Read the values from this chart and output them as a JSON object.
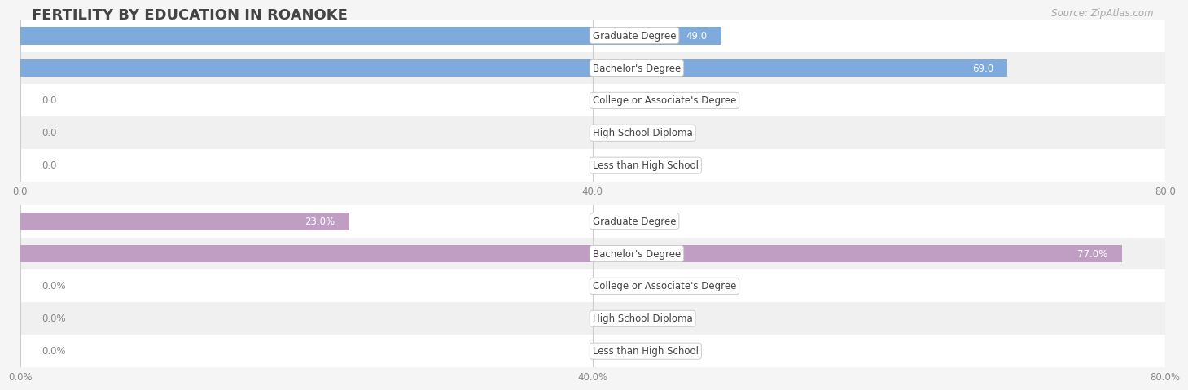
{
  "title": "FERTILITY BY EDUCATION IN ROANOKE",
  "source_text": "Source: ZipAtlas.com",
  "chart1": {
    "categories": [
      "Less than High School",
      "High School Diploma",
      "College or Associate's Degree",
      "Bachelor's Degree",
      "Graduate Degree"
    ],
    "values": [
      0.0,
      0.0,
      0.0,
      69.0,
      49.0
    ],
    "bar_color": "#7eaadc",
    "label_color_normal": "#555555",
    "label_color_bar": "#ffffff",
    "xlim": [
      0,
      80
    ],
    "xticks": [
      0.0,
      40.0,
      80.0
    ],
    "bar_height": 0.55
  },
  "chart2": {
    "categories": [
      "Less than High School",
      "High School Diploma",
      "College or Associate's Degree",
      "Bachelor's Degree",
      "Graduate Degree"
    ],
    "values": [
      0.0,
      0.0,
      0.0,
      77.0,
      23.0
    ],
    "bar_color": "#c09ec4",
    "label_color_normal": "#555555",
    "label_color_bar": "#ffffff",
    "xlim": [
      0,
      80
    ],
    "xticks": [
      0.0,
      40.0,
      80.0
    ],
    "bar_height": 0.55
  },
  "bg_color": "#f5f5f5",
  "row_bg_colors": [
    "#ffffff",
    "#f0f0f0"
  ],
  "title_color": "#444444",
  "tick_label_color": "#888888",
  "source_color": "#aaaaaa",
  "label_box_bg": "#ffffff",
  "label_box_edge": "#cccccc"
}
